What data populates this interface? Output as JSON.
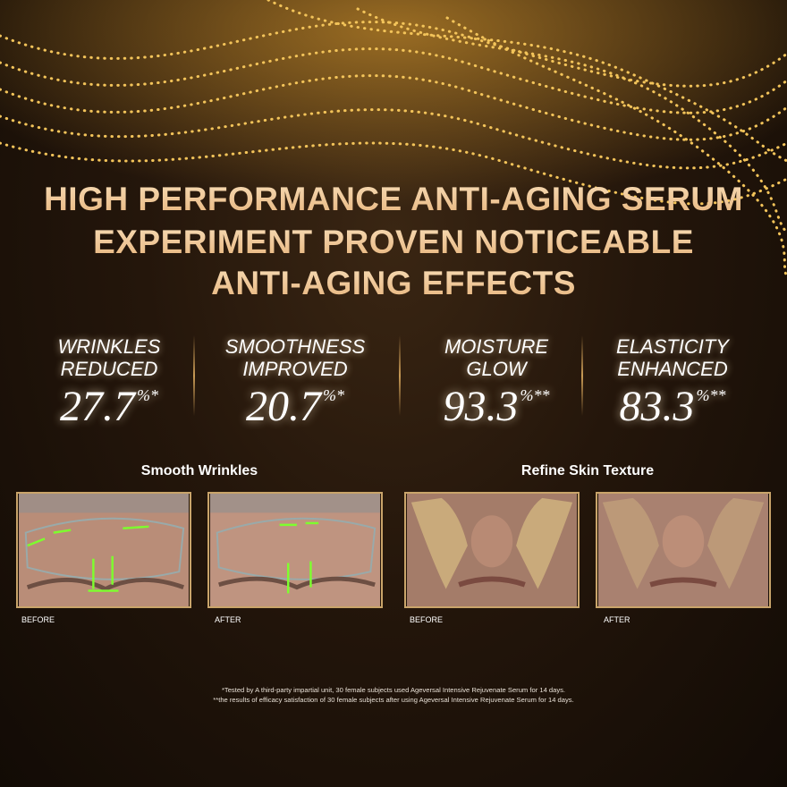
{
  "header": {
    "title_lines": [
      "HIGH PERFORMANCE ANTI-AGING SERUM",
      "EXPERIMENT PROVEN NOTICEABLE",
      "ANTI-AGING EFFECTS"
    ]
  },
  "stats": [
    {
      "label_lines": [
        "WRINKLES",
        "REDUCED"
      ],
      "value": 27.7,
      "suffix": "%*"
    },
    {
      "label_lines": [
        "SMOOTHNESS",
        "IMPROVED"
      ],
      "value": 20.7,
      "suffix": "%*"
    },
    {
      "label_lines": [
        "MOISTURE",
        "GLOW"
      ],
      "value": 93.3,
      "suffix": "%**"
    },
    {
      "label_lines": [
        "ELASTICITY",
        "ENHANCED"
      ],
      "value": 83.3,
      "suffix": "%**"
    }
  ],
  "comparisons": [
    {
      "title": "Smooth Wrinkles",
      "before": "BEFORE",
      "after": "AFTER"
    },
    {
      "title": "Refine Skin Texture",
      "before": "BEFORE",
      "after": "AFTER"
    }
  ],
  "footnotes": [
    "*Tested by A third-party impartial unit, 30 female subjects used Ageversal Intensive Rejuvenate Serum for 14 days.",
    "**the results of efficacy satisfaction of 30 female subjects after using Ageversal Intensive Rejuvenate Serum for 14 days."
  ]
}
